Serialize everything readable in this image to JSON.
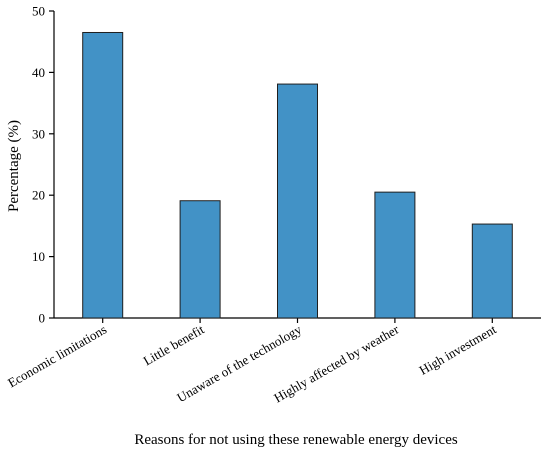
{
  "chart_data": {
    "type": "bar",
    "title": "",
    "xlabel": "Reasons for not using these renewable energy devices",
    "ylabel": "Percentage (%)",
    "categories": [
      "Economic limitations",
      "Little benefit",
      "Unaware of the technology",
      "Highly affected by weather",
      "High investment"
    ],
    "values": [
      46.5,
      19.1,
      38.1,
      20.5,
      15.3
    ],
    "ylim": [
      0,
      50
    ],
    "yticks": [
      0,
      10,
      20,
      30,
      40,
      50
    ],
    "ytick_labels": [
      "0",
      "10",
      "20",
      "30",
      "40",
      "50"
    ],
    "grid": false,
    "legend": "none",
    "colors": {
      "bar_fill": "#4292C6",
      "bar_stroke": "#1f1f1f",
      "axis": "#000000"
    }
  }
}
